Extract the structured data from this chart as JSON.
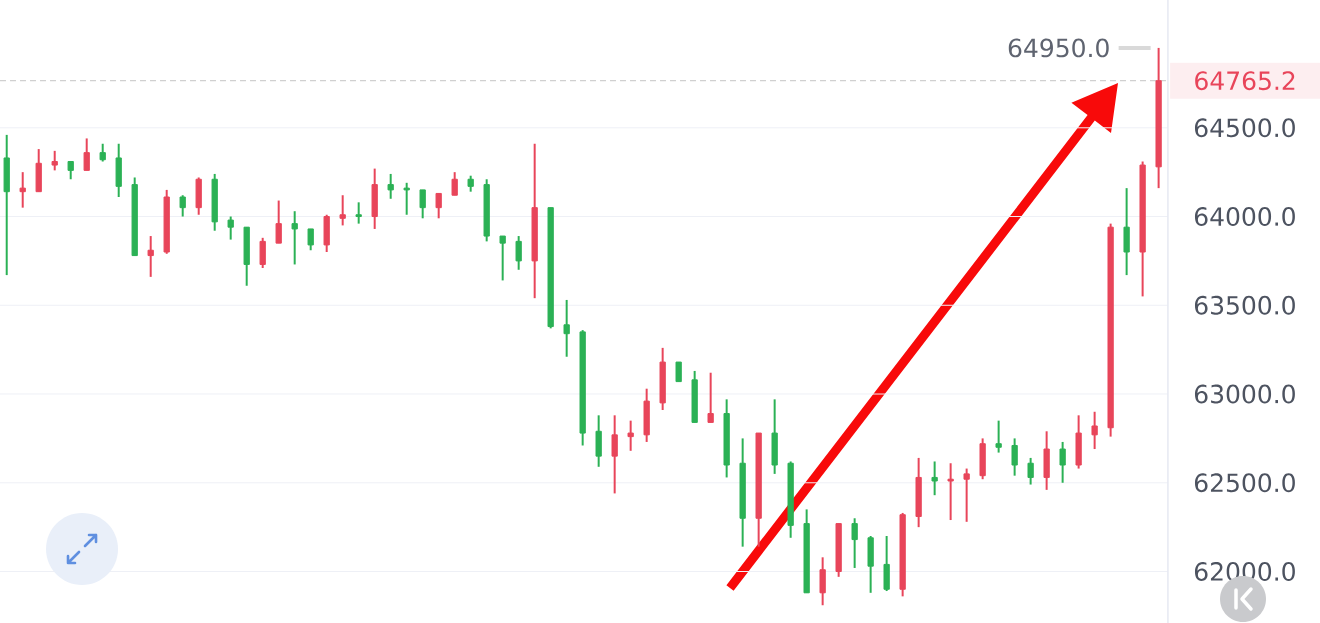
{
  "chart_data": {
    "type": "candlestick",
    "categories": [
      null,
      null,
      null,
      null,
      null,
      null,
      null,
      null,
      null,
      null,
      null,
      null,
      null,
      null,
      null,
      null,
      null,
      null,
      null,
      null,
      null,
      null,
      null,
      null,
      null,
      null,
      null,
      null,
      null,
      null,
      null,
      null,
      null,
      null,
      null,
      null,
      null,
      null,
      null,
      null,
      null,
      null,
      null,
      null,
      null,
      null,
      null,
      null,
      null,
      null,
      null,
      null,
      null,
      null,
      null,
      null,
      null,
      null,
      null,
      null,
      null,
      null,
      null,
      null,
      null,
      null,
      null,
      null,
      null,
      null,
      null,
      null,
      null
    ],
    "ohlc": [
      [
        64330,
        64460,
        63670,
        64140
      ],
      [
        64140,
        64250,
        64050,
        64160
      ],
      [
        64140,
        64380,
        64140,
        64300
      ],
      [
        64290,
        64370,
        64260,
        64310
      ],
      [
        64310,
        64310,
        64210,
        64260
      ],
      [
        64260,
        64440,
        64260,
        64360
      ],
      [
        64360,
        64410,
        64310,
        64320
      ],
      [
        64330,
        64410,
        64110,
        64170
      ],
      [
        64180,
        64220,
        63780,
        63780
      ],
      [
        63780,
        63890,
        63660,
        63810
      ],
      [
        63800,
        64150,
        63790,
        64110
      ],
      [
        64110,
        64120,
        64000,
        64050
      ],
      [
        64050,
        64220,
        64010,
        64210
      ],
      [
        64210,
        64240,
        63920,
        63970
      ],
      [
        63980,
        64000,
        63870,
        63940
      ],
      [
        63940,
        63940,
        63610,
        63730
      ],
      [
        63730,
        63880,
        63710,
        63860
      ],
      [
        63850,
        64090,
        63850,
        63960
      ],
      [
        63960,
        64030,
        63730,
        63930
      ],
      [
        63930,
        63930,
        63810,
        63840
      ],
      [
        63840,
        64010,
        63800,
        64000
      ],
      [
        63990,
        64120,
        63950,
        64010
      ],
      [
        64010,
        64080,
        63960,
        64000
      ],
      [
        64000,
        64270,
        63930,
        64180
      ],
      [
        64180,
        64240,
        64100,
        64150
      ],
      [
        64160,
        64190,
        64010,
        64150
      ],
      [
        64150,
        64150,
        63990,
        64050
      ],
      [
        64050,
        64130,
        63990,
        64130
      ],
      [
        64120,
        64250,
        64120,
        64210
      ],
      [
        64210,
        64230,
        64140,
        64170
      ],
      [
        64180,
        64210,
        63860,
        63890
      ],
      [
        63890,
        63890,
        63640,
        63850
      ],
      [
        63860,
        63890,
        63700,
        63750
      ],
      [
        63750,
        64410,
        63540,
        64050
      ],
      [
        64050,
        64050,
        63370,
        63380
      ],
      [
        63390,
        63530,
        63210,
        63340
      ],
      [
        63350,
        63360,
        62710,
        62780
      ],
      [
        62790,
        62880,
        62590,
        62650
      ],
      [
        62650,
        62880,
        62440,
        62770
      ],
      [
        62760,
        62850,
        62680,
        62780
      ],
      [
        62770,
        63030,
        62730,
        62960
      ],
      [
        62950,
        63260,
        62910,
        63180
      ],
      [
        63180,
        63180,
        63070,
        63070
      ],
      [
        63080,
        63130,
        62840,
        62840
      ],
      [
        62840,
        63120,
        62840,
        62890
      ],
      [
        62890,
        62970,
        62530,
        62600
      ],
      [
        62610,
        62750,
        62140,
        62300
      ],
      [
        62300,
        62780,
        62140,
        62780
      ],
      [
        62780,
        62970,
        62550,
        62600
      ],
      [
        62610,
        62620,
        62190,
        62260
      ],
      [
        62270,
        62350,
        61880,
        61880
      ],
      [
        61880,
        62080,
        61810,
        62010
      ],
      [
        62000,
        62270,
        61970,
        62270
      ],
      [
        62270,
        62300,
        62020,
        62180
      ],
      [
        62190,
        62200,
        61880,
        62030
      ],
      [
        62040,
        62200,
        61890,
        61900
      ],
      [
        61900,
        62330,
        61860,
        62320
      ],
      [
        62310,
        62640,
        62250,
        62530
      ],
      [
        62530,
        62620,
        62430,
        62510
      ],
      [
        62510,
        62610,
        62290,
        62520
      ],
      [
        62520,
        62580,
        62280,
        62550
      ],
      [
        62540,
        62750,
        62520,
        62720
      ],
      [
        62720,
        62850,
        62670,
        62700
      ],
      [
        62710,
        62750,
        62540,
        62600
      ],
      [
        62610,
        62640,
        62490,
        62530
      ],
      [
        62530,
        62790,
        62460,
        62690
      ],
      [
        62690,
        62730,
        62500,
        62600
      ],
      [
        62600,
        62880,
        62580,
        62780
      ],
      [
        62770,
        62900,
        62690,
        62820
      ],
      [
        62810,
        63960,
        62760,
        63940
      ],
      [
        63940,
        64160,
        63670,
        63800
      ],
      [
        63800,
        64310,
        63550,
        64290
      ],
      [
        64280,
        64950,
        64160,
        64765.2
      ]
    ],
    "colors": [
      "#2bb155",
      "#e8455a",
      "#e8455a",
      "#e8455a",
      "#2bb155",
      "#e8455a",
      "#2bb155",
      "#2bb155",
      "#2bb155",
      "#e8455a",
      "#e8455a",
      "#2bb155",
      "#e8455a",
      "#2bb155",
      "#2bb155",
      "#2bb155",
      "#e8455a",
      "#e8455a",
      "#2bb155",
      "#2bb155",
      "#e8455a",
      "#e8455a",
      "#2bb155",
      "#e8455a",
      "#2bb155",
      "#2bb155",
      "#2bb155",
      "#e8455a",
      "#e8455a",
      "#2bb155",
      "#2bb155",
      "#2bb155",
      "#2bb155",
      "#e8455a",
      "#2bb155",
      "#2bb155",
      "#2bb155",
      "#2bb155",
      "#e8455a",
      "#e8455a",
      "#e8455a",
      "#e8455a",
      "#2bb155",
      "#2bb155",
      "#e8455a",
      "#2bb155",
      "#2bb155",
      "#e8455a",
      "#2bb155",
      "#2bb155",
      "#2bb155",
      "#e8455a",
      "#e8455a",
      "#2bb155",
      "#2bb155",
      "#2bb155",
      "#e8455a",
      "#e8455a",
      "#2bb155",
      "#e8455a",
      "#e8455a",
      "#e8455a",
      "#2bb155",
      "#2bb155",
      "#2bb155",
      "#e8455a",
      "#2bb155",
      "#e8455a",
      "#e8455a",
      "#e8455a",
      "#2bb155",
      "#e8455a",
      "#e8455a"
    ],
    "ylim": [
      61710,
      65220
    ],
    "yticks": [
      {
        "value": 62000,
        "label": "62000.0"
      },
      {
        "value": 62500,
        "label": "62500.0"
      },
      {
        "value": 63000,
        "label": "63000.0"
      },
      {
        "value": 63500,
        "label": "63500.0"
      },
      {
        "value": 64000,
        "label": "64000.0"
      },
      {
        "value": 64500,
        "label": "64500.0"
      }
    ],
    "grid": "y",
    "tick_labels": "y",
    "ref_lines": [
      {
        "axis": "y",
        "value": 64765.2,
        "label": "64765.2",
        "color": "#c4c4c4",
        "line_style": "dashed"
      }
    ],
    "annotations": [
      "64950.0"
    ]
  }
}
